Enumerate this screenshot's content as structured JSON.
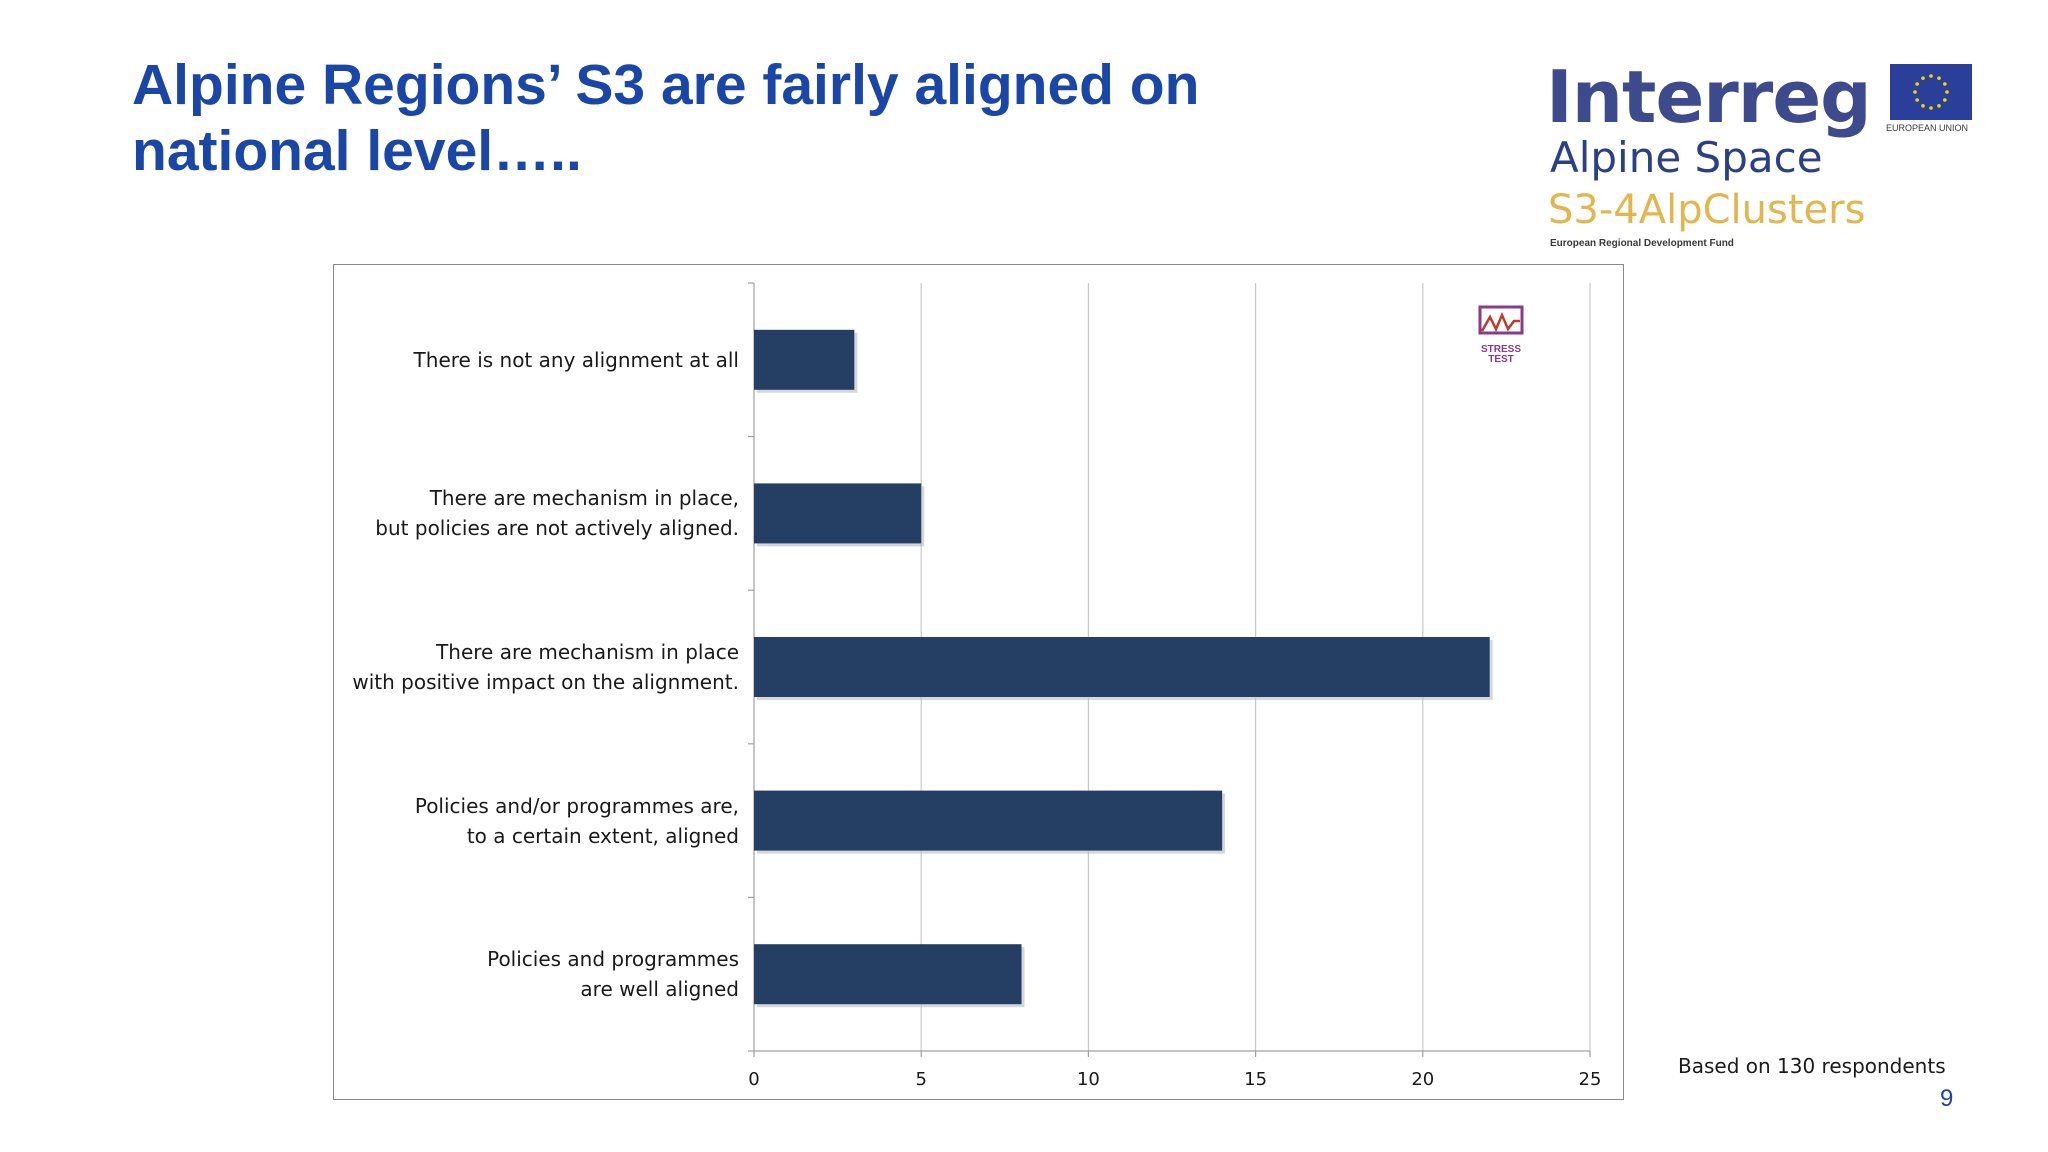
{
  "slide": {
    "title": "Alpine Regions’ S3 are fairly aligned on national level…..",
    "footnote": "Based on 130 respondents",
    "page_number": "9"
  },
  "logo": {
    "brand": "Interreg",
    "programme": "Alpine Space",
    "project": "S3-4AlpClusters",
    "fund": "European Regional Development Fund",
    "eu_label": "EUROPEAN UNION",
    "colors": {
      "brand": "#3d4b8c",
      "project": "#e2b64d",
      "eu_flag": "#2a3f99",
      "eu_stars": "#f5d400"
    }
  },
  "stress_badge": {
    "text": "STRESS\nTEST",
    "color": "#8a3a8a"
  },
  "chart_data": {
    "type": "bar",
    "orientation": "horizontal",
    "categories": [
      "There is not any alignment at all",
      "There are mechanism in place,\nbut policies are not actively aligned.",
      "There are mechanism in place\nwith positive impact on the alignment.",
      "Policies and/or programmes are,\nto a certain extent, aligned",
      "Policies and programmes\nare well aligned"
    ],
    "values": [
      3,
      5,
      22,
      14,
      8
    ],
    "xlim": [
      0,
      25
    ],
    "xticks": [
      "0",
      "5",
      "10",
      "15",
      "20",
      "25"
    ],
    "grid": "vertical",
    "bar_color": "#243f63",
    "legend": "none"
  }
}
